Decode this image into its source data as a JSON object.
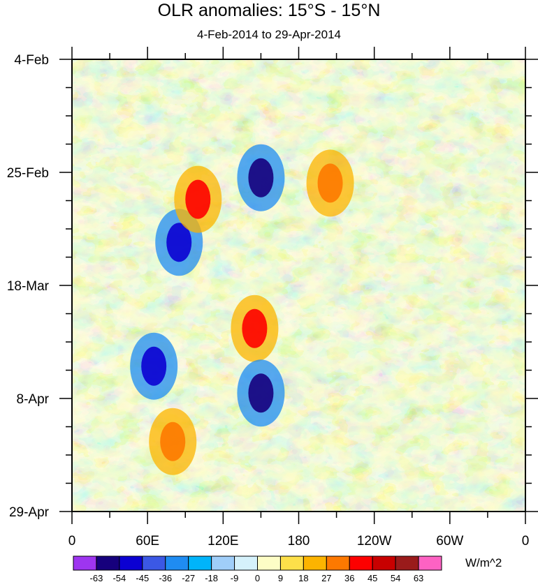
{
  "chart_data": {
    "type": "heatmap",
    "title": "OLR anomalies: 15°S - 15°N",
    "subtitle": "4-Feb-2014 to 29-Apr-2014",
    "xlabel": "",
    "ylabel": "",
    "x_tick_labels": [
      "0",
      "60E",
      "120E",
      "180",
      "120W",
      "60W",
      "0"
    ],
    "x_ticks_deg_east": [
      0,
      60,
      120,
      180,
      240,
      300,
      360
    ],
    "y_tick_labels": [
      "4-Feb",
      "25-Feb",
      "18-Mar",
      "8-Apr",
      "29-Apr"
    ],
    "y_ticks_date": [
      "2014-02-04",
      "2014-02-25",
      "2014-03-18",
      "2014-04-08",
      "2014-04-29"
    ],
    "xlim": [
      0,
      360
    ],
    "ylim": [
      "2014-02-04",
      "2014-04-29"
    ],
    "units": "W/m^2",
    "colorbar": {
      "labels": [
        "-63",
        "-54",
        "-45",
        "-36",
        "-27",
        "-18",
        "-9",
        "0",
        "9",
        "18",
        "27",
        "36",
        "45",
        "54",
        "63"
      ],
      "colors": [
        "#9e35f0",
        "#16007d",
        "#0b00d2",
        "#3b58e5",
        "#1f8cf2",
        "#00b4fa",
        "#a0cef9",
        "#d5f1fb",
        "#fdfdc6",
        "#fde04a",
        "#fcb400",
        "#fd7900",
        "#fd0000",
        "#c80000",
        "#9a1b1b",
        "#fd62c3"
      ]
    },
    "notable_features": [
      {
        "kind": "negative",
        "lon": 85,
        "date": "2014-03-10",
        "level": "-45"
      },
      {
        "kind": "positive",
        "lon": 100,
        "date": "2014-03-02",
        "level": "36"
      },
      {
        "kind": "negative",
        "lon": 150,
        "date": "2014-02-26",
        "level": "-54"
      },
      {
        "kind": "positive",
        "lon": 145,
        "date": "2014-03-26",
        "level": "36"
      },
      {
        "kind": "negative",
        "lon": 150,
        "date": "2014-04-07",
        "level": "-54"
      },
      {
        "kind": "negative",
        "lon": 65,
        "date": "2014-04-02",
        "level": "-45"
      },
      {
        "kind": "positive",
        "lon": 80,
        "date": "2014-04-16",
        "level": "27"
      },
      {
        "kind": "positive",
        "lon": 205,
        "date": "2014-02-27",
        "level": "27"
      }
    ]
  }
}
